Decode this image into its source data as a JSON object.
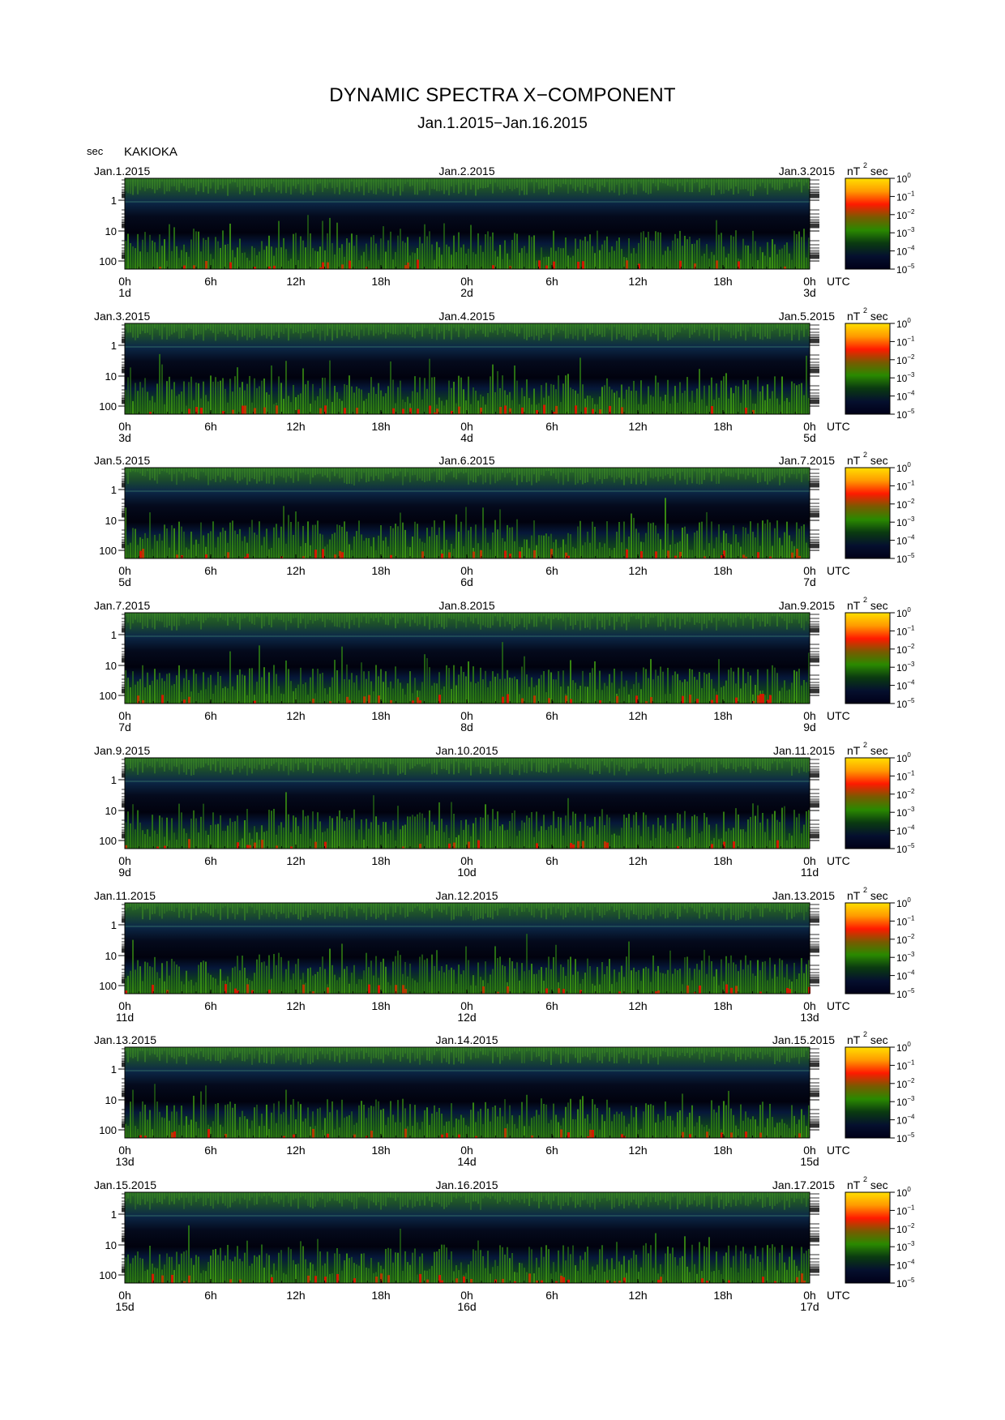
{
  "title": "DYNAMIC SPECTRA X−COMPONENT",
  "subtitle": "Jan.1.2015−Jan.16.2015",
  "y_unit": "sec",
  "station": "KAKIOKA",
  "colorbar_unit_prefix": "nT",
  "colorbar_unit_sup": "2",
  "colorbar_unit_suffix": "sec",
  "colorbar_base": "10",
  "colorbar_exponents": [
    "0",
    "−1",
    "−2",
    "−3",
    "−4",
    "−5"
  ],
  "y_tick_labels": [
    "1",
    "10",
    "100"
  ],
  "x_tick_labels": [
    "0h",
    "6h",
    "12h",
    "18h",
    "0h",
    "6h",
    "12h",
    "18h",
    "0h"
  ],
  "utc_label": "UTC",
  "colors": {
    "colorbar_stops": [
      "#ffe000",
      "#ff9a00",
      "#ff1a00",
      "#7a5a00",
      "#2a8a00",
      "#0a3a10",
      "#05102e",
      "#000018"
    ],
    "background": "#ffffff"
  },
  "chart_data": {
    "type": "heatmap",
    "title": "DYNAMIC SPECTRA X−COMPONENT",
    "subtitle": "Jan.1.2015−Jan.16.2015",
    "ylabel": "sec",
    "y_scale": "log",
    "y_ticks": [
      1,
      10,
      100
    ],
    "colorbar": {
      "unit": "nT²sec",
      "scale": "log",
      "min": 1e-05,
      "max": 1
    },
    "panels": [
      {
        "left_date": "Jan.1.2015",
        "mid_date": "Jan.2.2015",
        "right_date": "Jan.3.2015",
        "day_labels": [
          "1d",
          "2d",
          "3d"
        ]
      },
      {
        "left_date": "Jan.3.2015",
        "mid_date": "Jan.4.2015",
        "right_date": "Jan.5.2015",
        "day_labels": [
          "3d",
          "4d",
          "5d"
        ]
      },
      {
        "left_date": "Jan.5.2015",
        "mid_date": "Jan.6.2015",
        "right_date": "Jan.7.2015",
        "day_labels": [
          "5d",
          "6d",
          "7d"
        ]
      },
      {
        "left_date": "Jan.7.2015",
        "mid_date": "Jan.8.2015",
        "right_date": "Jan.9.2015",
        "day_labels": [
          "7d",
          "8d",
          "9d"
        ]
      },
      {
        "left_date": "Jan.9.2015",
        "mid_date": "Jan.10.2015",
        "right_date": "Jan.11.2015",
        "day_labels": [
          "9d",
          "10d",
          "11d"
        ]
      },
      {
        "left_date": "Jan.11.2015",
        "mid_date": "Jan.12.2015",
        "right_date": "Jan.13.2015",
        "day_labels": [
          "11d",
          "12d",
          "13d"
        ]
      },
      {
        "left_date": "Jan.13.2015",
        "mid_date": "Jan.14.2015",
        "right_date": "Jan.15.2015",
        "day_labels": [
          "13d",
          "14d",
          "15d"
        ]
      },
      {
        "left_date": "Jan.15.2015",
        "mid_date": "Jan.16.2015",
        "right_date": "Jan.17.2015",
        "day_labels": [
          "15d",
          "16d",
          "17d"
        ]
      }
    ]
  }
}
